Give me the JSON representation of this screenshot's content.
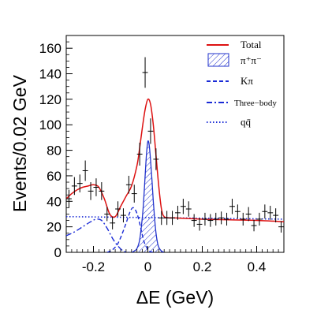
{
  "chart_data": {
    "type": "line",
    "xlabel": "ΔE (GeV)",
    "ylabel": "Events/0.02 GeV",
    "xlim": [
      -0.3,
      0.5
    ],
    "ylim": [
      0,
      170
    ],
    "x_ticks": [
      -0.2,
      0,
      0.2,
      0.4
    ],
    "x_tick_labels": [
      "-0.2",
      "0",
      "0.2",
      "0.4"
    ],
    "y_ticks": [
      0,
      20,
      40,
      60,
      80,
      100,
      120,
      140,
      160
    ],
    "y_tick_labels": [
      "0",
      "20",
      "40",
      "60",
      "80",
      "100",
      "120",
      "140",
      "160"
    ],
    "grid": false,
    "legend_position": "top-right",
    "legend": [
      {
        "label": "Total",
        "style": "solid",
        "color": "#dd1111"
      },
      {
        "label": "π⁺π⁻",
        "style": "hatched",
        "color": "#2233cc"
      },
      {
        "label": "Kπ",
        "style": "dashed",
        "color": "#1a2bd6"
      },
      {
        "label": "Three−body",
        "style": "dashdot",
        "color": "#1a2bd6"
      },
      {
        "label": "qq̄",
        "style": "dotted",
        "color": "#1a2bd6"
      }
    ],
    "data_points": {
      "name": "Data",
      "x": [
        -0.29,
        -0.27,
        -0.25,
        -0.23,
        -0.21,
        -0.19,
        -0.17,
        -0.15,
        -0.13,
        -0.11,
        -0.09,
        -0.07,
        -0.05,
        -0.03,
        -0.01,
        0.01,
        0.03,
        0.05,
        0.07,
        0.09,
        0.11,
        0.13,
        0.15,
        0.17,
        0.19,
        0.21,
        0.23,
        0.25,
        0.27,
        0.29,
        0.31,
        0.33,
        0.35,
        0.37,
        0.39,
        0.41,
        0.43,
        0.45,
        0.47,
        0.49
      ],
      "y": [
        42,
        52,
        54,
        64,
        48,
        51,
        48,
        30,
        23,
        34,
        29,
        53,
        46,
        77,
        141,
        95,
        73,
        27,
        27,
        27,
        31,
        36,
        34,
        25,
        22,
        26,
        25,
        26,
        27,
        26,
        36,
        32,
        26,
        30,
        21,
        26,
        32,
        31,
        29,
        20
      ],
      "err": [
        7,
        7,
        7,
        8,
        7,
        7,
        7,
        5.5,
        5,
        6,
        5.5,
        7,
        7,
        9,
        12,
        10,
        8.5,
        5.5,
        5.5,
        5.5,
        5.5,
        6,
        6,
        5,
        5,
        5,
        5,
        5,
        5,
        5,
        6,
        5.5,
        5,
        5.5,
        4.5,
        5,
        5.5,
        5.5,
        5.5,
        4.5
      ]
    },
    "series": [
      {
        "name": "Total",
        "color": "#dd1111",
        "x": [
          -0.3,
          -0.28,
          -0.26,
          -0.24,
          -0.22,
          -0.2,
          -0.18,
          -0.16,
          -0.14,
          -0.12,
          -0.1,
          -0.08,
          -0.06,
          -0.04,
          -0.03,
          -0.02,
          -0.01,
          0,
          0.01,
          0.02,
          0.03,
          0.04,
          0.05,
          0.06,
          0.08,
          0.1,
          0.15,
          0.2,
          0.3,
          0.4,
          0.5
        ],
        "y": [
          42,
          46,
          49,
          51,
          52,
          53,
          51,
          42,
          30,
          28,
          36,
          44,
          52,
          68,
          82,
          98,
          112,
          120,
          116,
          100,
          76,
          52,
          34,
          28,
          27,
          27,
          26.5,
          26,
          25.5,
          25,
          24
        ]
      },
      {
        "name": "π⁺π⁻",
        "color": "#2233cc",
        "x": [
          -0.06,
          -0.05,
          -0.04,
          -0.03,
          -0.02,
          -0.015,
          -0.01,
          -0.005,
          0,
          0.005,
          0.01,
          0.015,
          0.02,
          0.025,
          0.03,
          0.035,
          0.04,
          0.05,
          0.06
        ],
        "y": [
          0,
          1,
          3,
          10,
          28,
          42,
          60,
          77,
          87,
          84,
          72,
          57,
          40,
          26,
          15,
          8,
          4,
          1,
          0
        ]
      },
      {
        "name": "Kπ",
        "color": "#1a2bd6",
        "x": [
          -0.15,
          -0.13,
          -0.11,
          -0.09,
          -0.075,
          -0.065,
          -0.055,
          -0.045,
          -0.035,
          -0.025,
          -0.015,
          -0.005,
          0.005,
          0.02
        ],
        "y": [
          0,
          2,
          7,
          17,
          26,
          32,
          35,
          33,
          27,
          18,
          9,
          4,
          1,
          0
        ]
      },
      {
        "name": "Three−body",
        "color": "#1a2bd6",
        "x": [
          -0.3,
          -0.27,
          -0.24,
          -0.21,
          -0.19,
          -0.17,
          -0.15,
          -0.13,
          -0.11,
          -0.09,
          -0.07
        ],
        "y": [
          13,
          16,
          20,
          24,
          26,
          25,
          19,
          11,
          5,
          1,
          0
        ]
      },
      {
        "name": "qq̄",
        "color": "#1a2bd6",
        "x": [
          -0.3,
          -0.1,
          0.1,
          0.3,
          0.5
        ],
        "y": [
          28,
          27.5,
          27,
          26.5,
          26
        ]
      }
    ]
  }
}
